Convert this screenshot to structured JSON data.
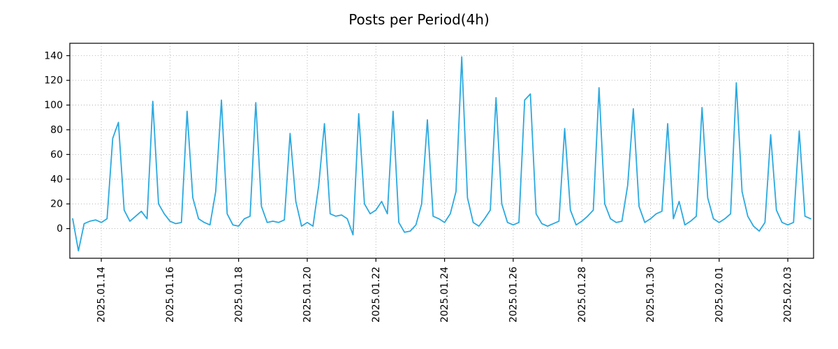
{
  "chart_data": {
    "type": "line",
    "title": "Posts per Period(4h)",
    "xlabel": "",
    "ylabel": "",
    "period": "4h",
    "grid": "dotted",
    "grid_color": "#b0b0b0",
    "axis_color": "#000000",
    "ylim": [
      -24,
      150
    ],
    "y_ticks": [
      0,
      20,
      40,
      60,
      80,
      100,
      120,
      140
    ],
    "x_tick_labels": [
      "2025.01.14",
      "2025.01.16",
      "2025.01.18",
      "2025.01.20",
      "2025.01.22",
      "2025.01.24",
      "2025.01.26",
      "2025.01.28",
      "2025.01.30",
      "2025.02.01",
      "2025.02.03"
    ],
    "x_tick_indices": [
      5,
      17,
      29,
      41,
      53,
      65,
      77,
      89,
      101,
      113,
      125
    ],
    "points_per_day": 6,
    "series": [
      {
        "name": "posts",
        "color": "#2aa9e0",
        "values": [
          8,
          -18,
          4,
          6,
          7,
          5,
          8,
          73,
          86,
          15,
          6,
          10,
          14,
          8,
          103,
          20,
          12,
          6,
          4,
          5,
          95,
          25,
          8,
          5,
          3,
          30,
          104,
          12,
          3,
          2,
          8,
          10,
          102,
          18,
          5,
          6,
          5,
          7,
          77,
          22,
          2,
          5,
          2,
          35,
          85,
          12,
          10,
          11,
          8,
          -5,
          93,
          20,
          12,
          15,
          22,
          12,
          95,
          5,
          -3,
          -2,
          3,
          20,
          88,
          10,
          8,
          5,
          12,
          30,
          139,
          25,
          5,
          2,
          8,
          15,
          106,
          20,
          5,
          3,
          5,
          104,
          109,
          12,
          4,
          2,
          4,
          6,
          81,
          15,
          3,
          6,
          10,
          15,
          114,
          20,
          8,
          5,
          6,
          35,
          97,
          18,
          5,
          8,
          12,
          14,
          85,
          8,
          22,
          3,
          6,
          10,
          98,
          25,
          8,
          5,
          8,
          12,
          118,
          30,
          10,
          2,
          -2,
          5,
          76,
          15,
          5,
          3,
          5,
          79,
          10,
          8
        ]
      }
    ],
    "daily_peaks": {
      "2025.01.14": 86,
      "2025.01.15": 103,
      "2025.01.16": 95,
      "2025.01.17": 104,
      "2025.01.18": 102,
      "2025.01.19": 77,
      "2025.01.20": 85,
      "2025.01.21": 93,
      "2025.01.22": 95,
      "2025.01.23": 88,
      "2025.01.24": 139,
      "2025.01.25": 106,
      "2025.01.26": 109,
      "2025.01.27": 81,
      "2025.01.28": 114,
      "2025.01.29": 97,
      "2025.01.30": 85,
      "2025.01.31": 98,
      "2025.02.01": 118,
      "2025.02.02": 76,
      "2025.02.03": 79
    }
  }
}
